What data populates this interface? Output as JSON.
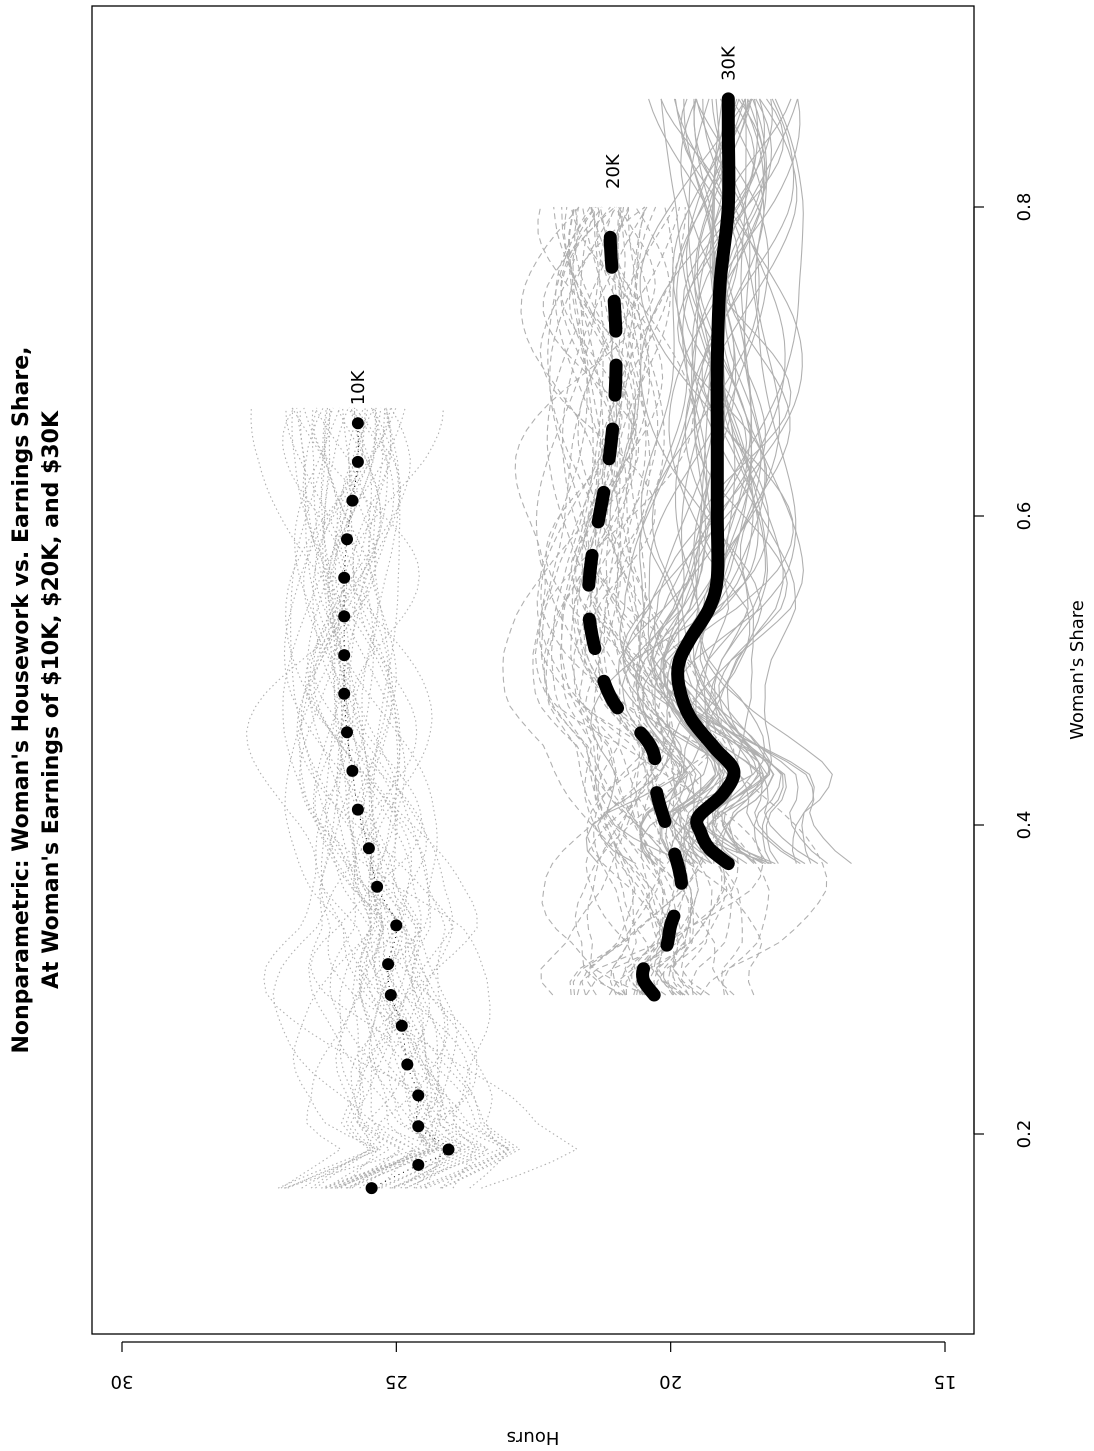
{
  "chart_data": {
    "type": "line",
    "orientation": "rotated-90-clockwise",
    "title": "Nonparametric: Woman's Housework vs. Earnings Share,",
    "subtitle": "At Woman's Earnings of $10K, $20K, and $30K",
    "xlabel": "Woman's Share",
    "ylabel": "Hours",
    "xlim": [
      0.06,
      0.91
    ],
    "ylim": [
      14.5,
      30.5
    ],
    "x_ticks": [
      0.2,
      0.4,
      0.6,
      0.8
    ],
    "x_tick_labels": [
      "0.2",
      "0.4",
      "0.6",
      "0.8"
    ],
    "y_ticks": [
      15,
      20,
      25,
      30
    ],
    "y_tick_labels": [
      "15",
      "20",
      "25",
      "30"
    ],
    "grid": false,
    "series": [
      {
        "name": "10K",
        "style": "dotted",
        "color": "#000000",
        "x": [
          0.165,
          0.18,
          0.19,
          0.205,
          0.225,
          0.245,
          0.27,
          0.29,
          0.31,
          0.335,
          0.36,
          0.385,
          0.41,
          0.435,
          0.46,
          0.485,
          0.51,
          0.535,
          0.56,
          0.585,
          0.61,
          0.635,
          0.66
        ],
        "y": [
          25.45,
          24.6,
          24.05,
          24.6,
          24.6,
          24.8,
          24.9,
          25.1,
          25.15,
          25.0,
          25.35,
          25.5,
          25.7,
          25.8,
          25.9,
          25.95,
          25.95,
          25.95,
          25.95,
          25.9,
          25.8,
          25.7,
          25.7
        ]
      },
      {
        "name": "20K",
        "style": "dashed",
        "color": "#000000",
        "x": [
          0.29,
          0.3,
          0.31,
          0.32,
          0.335,
          0.36,
          0.39,
          0.42,
          0.45,
          0.48,
          0.51,
          0.54,
          0.57,
          0.6,
          0.63,
          0.66,
          0.69,
          0.72,
          0.75,
          0.78,
          0.8
        ],
        "y": [
          20.3,
          20.5,
          20.45,
          20.1,
          20.0,
          19.8,
          20.0,
          20.25,
          20.35,
          21.05,
          21.35,
          21.5,
          21.45,
          21.3,
          21.15,
          21.05,
          21.0,
          21.0,
          21.05,
          21.1,
          21.05
        ]
      },
      {
        "name": "30K",
        "style": "solid",
        "color": "#000000",
        "x": [
          0.375,
          0.385,
          0.395,
          0.405,
          0.42,
          0.435,
          0.45,
          0.47,
          0.49,
          0.505,
          0.52,
          0.54,
          0.56,
          0.6,
          0.65,
          0.7,
          0.75,
          0.8,
          0.85,
          0.87
        ],
        "y": [
          18.95,
          19.3,
          19.45,
          19.5,
          19.05,
          18.85,
          19.2,
          19.65,
          19.85,
          19.85,
          19.65,
          19.3,
          19.15,
          19.15,
          19.15,
          19.15,
          19.1,
          18.95,
          18.95,
          18.95
        ]
      }
    ],
    "background_curves": {
      "color": "#b0b0b0",
      "groups": [
        {
          "series": "10K",
          "style": "dotted",
          "x_range": [
            0.165,
            0.67
          ]
        },
        {
          "series": "20K",
          "style": "dashed",
          "x_range": [
            0.29,
            0.8
          ]
        },
        {
          "series": "30K",
          "style": "solid",
          "x_range": [
            0.375,
            0.87
          ]
        }
      ]
    }
  }
}
